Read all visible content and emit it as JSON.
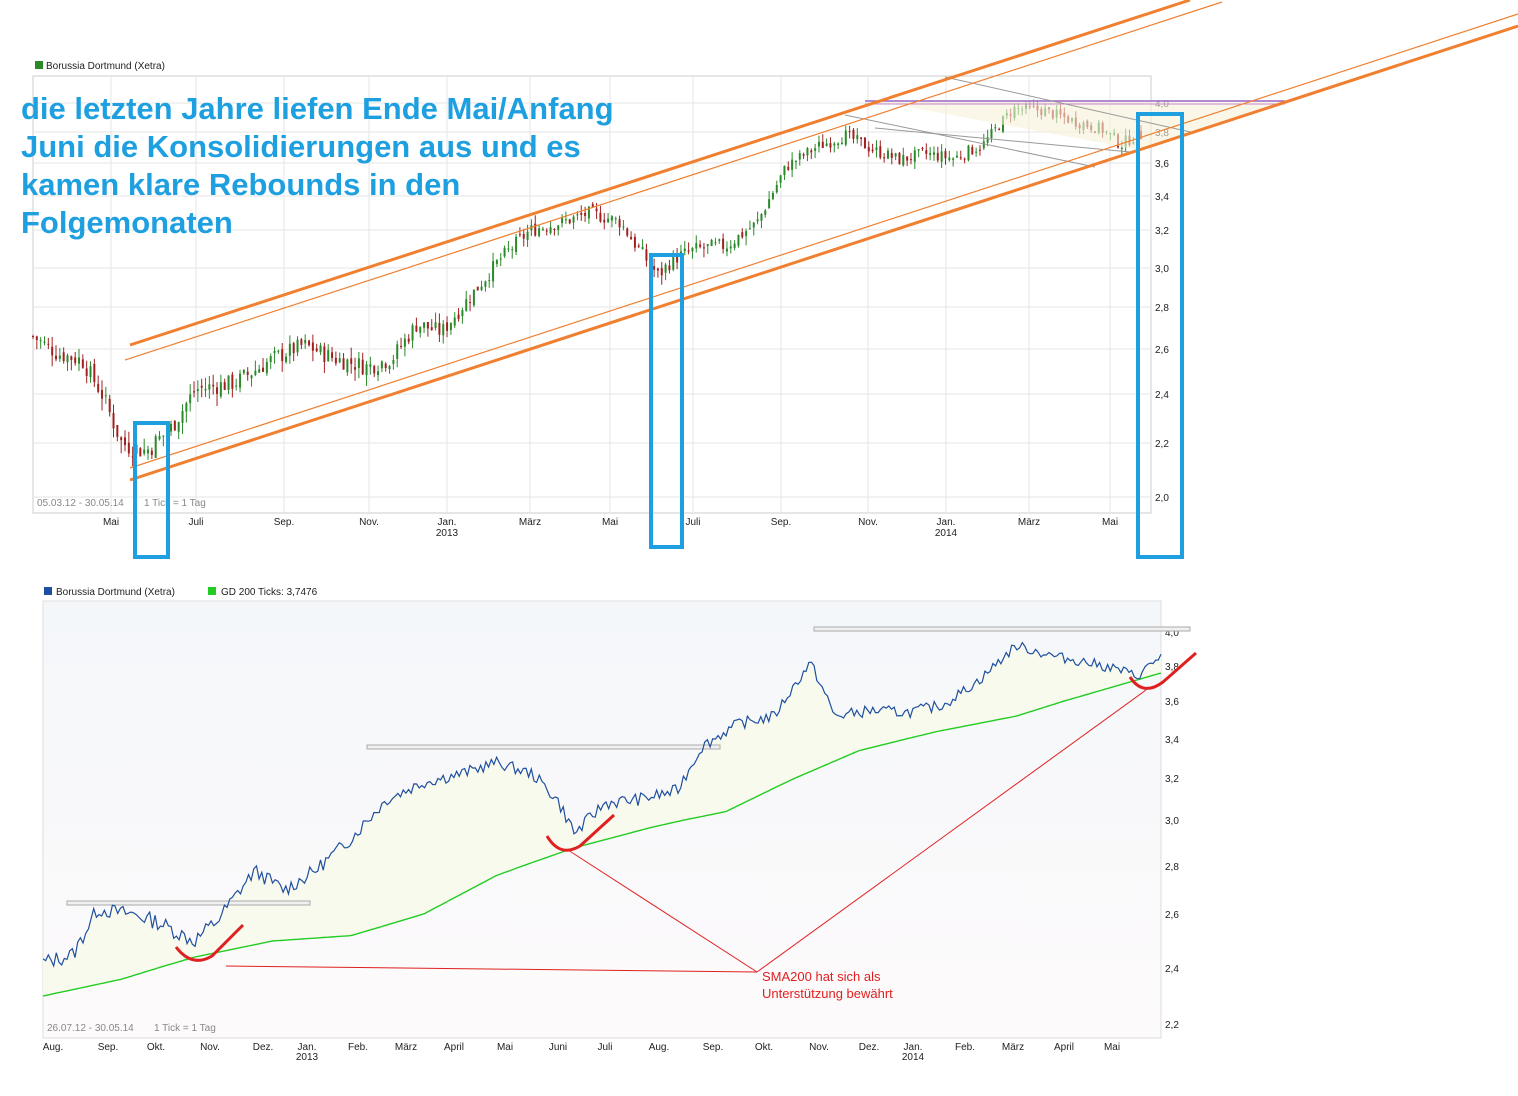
{
  "headline": [
    "die letzten Jahre liefen Ende Mai/Anfang",
    "Juni die Konsolidierungen aus und es",
    "kamen klare Rebounds in den",
    "Folgemonaten"
  ],
  "colors": {
    "headline": "#1ea0e0",
    "channel": "#f08030",
    "highlight_box": "#1ea0e0",
    "candle_up": "#2a8a2a",
    "candle_down": "#a02020",
    "price_line": "#1f4f9f",
    "sma": "#22cc22",
    "annotation": "#e02020",
    "resistance": "#9966cc"
  },
  "chart_data": [
    {
      "type": "candlestick",
      "legend": [
        {
          "name": "Borussia Dortmund (Xetra)",
          "color": "#2a8a2a"
        }
      ],
      "date_range": "05.03.12 - 30.05.14",
      "tick_info": "1 Tick = 1 Tag",
      "x_ticks": [
        "Mai",
        "Juli",
        "Sep.",
        "Nov.",
        "Jan.",
        "März",
        "Mai",
        "Juli",
        "Sep.",
        "Nov.",
        "Jan.",
        "März",
        "Mai"
      ],
      "x_years": [
        {
          "label": "2013",
          "at_tick": 4
        },
        {
          "label": "2014",
          "at_tick": 10
        }
      ],
      "y_ticks": [
        "2,0",
        "2,2",
        "2,4",
        "2,6",
        "2,8",
        "3,0",
        "3,2",
        "3,4",
        "3,6",
        "3,8",
        "4,0"
      ],
      "ylim": [
        1.95,
        4.05
      ],
      "highlight_periods": [
        "Mai/Juni 2012",
        "Mai/Juni 2013",
        "Mai 2014"
      ],
      "price_path": [
        [
          2012.17,
          2.66
        ],
        [
          2012.22,
          2.58
        ],
        [
          2012.27,
          2.55
        ],
        [
          2012.31,
          2.4
        ],
        [
          2012.35,
          2.2
        ],
        [
          2012.4,
          2.17
        ],
        [
          2012.45,
          2.26
        ],
        [
          2012.5,
          2.42
        ],
        [
          2012.58,
          2.45
        ],
        [
          2012.66,
          2.56
        ],
        [
          2012.72,
          2.62
        ],
        [
          2012.78,
          2.56
        ],
        [
          2012.85,
          2.52
        ],
        [
          2012.9,
          2.56
        ],
        [
          2012.95,
          2.72
        ],
        [
          2013.0,
          2.68
        ],
        [
          2013.06,
          2.86
        ],
        [
          2013.12,
          3.05
        ],
        [
          2013.18,
          3.2
        ],
        [
          2013.25,
          3.25
        ],
        [
          2013.3,
          3.3
        ],
        [
          2013.36,
          3.25
        ],
        [
          2013.4,
          3.1
        ],
        [
          2013.44,
          2.96
        ],
        [
          2013.47,
          3.05
        ],
        [
          2013.52,
          3.1
        ],
        [
          2013.58,
          3.12
        ],
        [
          2013.64,
          3.24
        ],
        [
          2013.7,
          3.58
        ],
        [
          2013.76,
          3.7
        ],
        [
          2013.82,
          3.78
        ],
        [
          2013.88,
          3.68
        ],
        [
          2013.93,
          3.62
        ],
        [
          2013.98,
          3.66
        ],
        [
          2014.04,
          3.63
        ],
        [
          2014.1,
          3.72
        ],
        [
          2014.16,
          3.96
        ],
        [
          2014.22,
          3.95
        ],
        [
          2014.28,
          3.88
        ],
        [
          2014.34,
          3.82
        ],
        [
          2014.38,
          3.72
        ],
        [
          2014.41,
          3.78
        ]
      ]
    },
    {
      "type": "line",
      "legend": [
        {
          "name": "Borussia Dortmund (Xetra)",
          "color": "#1f4f9f"
        },
        {
          "name": "GD 200 Ticks: 3,7476",
          "color": "#22cc22"
        }
      ],
      "date_range": "26.07.12 - 30.05.14",
      "tick_info": "1 Tick = 1 Tag",
      "x_ticks": [
        "Aug.",
        "Sep.",
        "Okt.",
        "Nov.",
        "Dez.",
        "Jan.",
        "Feb.",
        "März",
        "April",
        "Mai",
        "Juni",
        "Juli",
        "Aug.",
        "Sep.",
        "Okt.",
        "Nov.",
        "Dez.",
        "Jan.",
        "Feb.",
        "März",
        "April",
        "Mai"
      ],
      "x_years": [
        {
          "label": "2013",
          "at_tick": 5
        },
        {
          "label": "2014",
          "at_tick": 17
        }
      ],
      "y_ticks": [
        "2,2",
        "2,4",
        "2,6",
        "2,8",
        "3,0",
        "3,2",
        "3,4",
        "3,6",
        "3,8",
        "4,0"
      ],
      "ylim": [
        2.18,
        4.05
      ],
      "series": [
        {
          "name": "Borussia Dortmund (Xetra)",
          "points": [
            [
              2012.57,
              2.42
            ],
            [
              2012.62,
              2.45
            ],
            [
              2012.66,
              2.62
            ],
            [
              2012.72,
              2.6
            ],
            [
              2012.76,
              2.57
            ],
            [
              2012.82,
              2.5
            ],
            [
              2012.86,
              2.58
            ],
            [
              2012.92,
              2.78
            ],
            [
              2012.97,
              2.7
            ],
            [
              2013.02,
              2.78
            ],
            [
              2013.08,
              2.92
            ],
            [
              2013.14,
              3.1
            ],
            [
              2013.2,
              3.18
            ],
            [
              2013.26,
              3.22
            ],
            [
              2013.32,
              3.28
            ],
            [
              2013.38,
              3.22
            ],
            [
              2013.42,
              3.1
            ],
            [
              2013.45,
              2.94
            ],
            [
              2013.5,
              3.08
            ],
            [
              2013.56,
              3.1
            ],
            [
              2013.62,
              3.14
            ],
            [
              2013.66,
              3.36
            ],
            [
              2013.72,
              3.48
            ],
            [
              2013.78,
              3.52
            ],
            [
              2013.84,
              3.82
            ],
            [
              2013.88,
              3.52
            ],
            [
              2013.94,
              3.55
            ],
            [
              2014.0,
              3.54
            ],
            [
              2014.06,
              3.58
            ],
            [
              2014.12,
              3.72
            ],
            [
              2014.18,
              3.92
            ],
            [
              2014.24,
              3.86
            ],
            [
              2014.3,
              3.82
            ],
            [
              2014.35,
              3.78
            ],
            [
              2014.38,
              3.74
            ],
            [
              2014.42,
              3.86
            ]
          ]
        },
        {
          "name": "GD 200 Ticks: 3,7476",
          "points": [
            [
              2012.57,
              2.3
            ],
            [
              2012.7,
              2.36
            ],
            [
              2012.82,
              2.44
            ],
            [
              2012.95,
              2.5
            ],
            [
              2013.08,
              2.52
            ],
            [
              2013.2,
              2.6
            ],
            [
              2013.32,
              2.76
            ],
            [
              2013.45,
              2.88
            ],
            [
              2013.58,
              2.97
            ],
            [
              2013.7,
              3.04
            ],
            [
              2013.8,
              3.18
            ],
            [
              2013.92,
              3.34
            ],
            [
              2014.05,
              3.44
            ],
            [
              2014.18,
              3.52
            ],
            [
              2014.3,
              3.64
            ],
            [
              2014.42,
              3.76
            ]
          ]
        }
      ],
      "annotation": [
        "SMA200 hat sich als",
        "Unterstützung bewährt"
      ]
    }
  ]
}
